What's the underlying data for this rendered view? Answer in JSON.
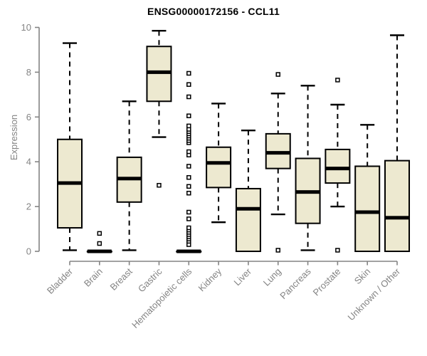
{
  "chart_data": {
    "type": "boxplot",
    "title": "ENSG00000172156 - CCL11",
    "ylabel": "Expression",
    "xlabel": "",
    "ylim": [
      0,
      10
    ],
    "yticks": [
      0,
      2,
      4,
      6,
      8,
      10
    ],
    "grid": false,
    "legend": "none",
    "categories": [
      "Bladder",
      "Brain",
      "Breast",
      "Gastric",
      "Hematopoietic cells",
      "Kidney",
      "Liver",
      "Lung",
      "Pancreas",
      "Prostate",
      "Skin",
      "Unknown / Other"
    ],
    "series": [
      {
        "name": "Bladder",
        "low": 0.05,
        "q1": 1.05,
        "median": 3.05,
        "q3": 5.0,
        "high": 9.3,
        "outliers": []
      },
      {
        "name": "Brain",
        "low": 0,
        "q1": 0,
        "median": 0,
        "q3": 0,
        "high": 0,
        "outliers": [
          0.35,
          0.8
        ]
      },
      {
        "name": "Breast",
        "low": 0.05,
        "q1": 2.2,
        "median": 3.25,
        "q3": 4.2,
        "high": 6.7,
        "outliers": []
      },
      {
        "name": "Gastric",
        "low": 5.1,
        "q1": 6.7,
        "median": 8.0,
        "q3": 9.15,
        "high": 9.85,
        "outliers": [
          2.95
        ]
      },
      {
        "name": "Hematopoietic cells",
        "low": 0,
        "q1": 0,
        "median": 0,
        "q3": 0,
        "high": 0,
        "outliers": [
          0.3,
          0.45,
          0.55,
          0.65,
          0.75,
          0.85,
          0.95,
          1.05,
          1.45,
          1.75,
          2.6,
          2.9,
          3.3,
          3.8,
          4.3,
          4.45,
          4.85,
          4.95,
          5.05,
          5.15,
          5.25,
          5.35,
          5.45,
          5.6,
          6.05,
          6.9,
          7.45,
          7.95
        ]
      },
      {
        "name": "Kidney",
        "low": 1.3,
        "q1": 2.85,
        "median": 3.95,
        "q3": 4.65,
        "high": 6.6,
        "outliers": []
      },
      {
        "name": "Liver",
        "low": 0,
        "q1": 0,
        "median": 1.9,
        "q3": 2.8,
        "high": 5.4,
        "outliers": []
      },
      {
        "name": "Lung",
        "low": 1.65,
        "q1": 3.7,
        "median": 4.4,
        "q3": 5.25,
        "high": 7.05,
        "outliers": [
          7.9,
          0.05
        ]
      },
      {
        "name": "Pancreas",
        "low": 0.05,
        "q1": 1.25,
        "median": 2.65,
        "q3": 4.15,
        "high": 7.4,
        "outliers": []
      },
      {
        "name": "Prostate",
        "low": 2.0,
        "q1": 3.05,
        "median": 3.7,
        "q3": 4.55,
        "high": 6.55,
        "outliers": [
          7.65,
          0.05
        ]
      },
      {
        "name": "Skin",
        "low": 0,
        "q1": 0,
        "median": 1.75,
        "q3": 3.8,
        "high": 5.65,
        "outliers": []
      },
      {
        "name": "Unknown / Other",
        "low": 0,
        "q1": 0,
        "median": 1.5,
        "q3": 4.05,
        "high": 9.65,
        "outliers": []
      }
    ],
    "colors": {
      "box_fill": "#EDE9D0",
      "box_border": "#000000",
      "median": "#000000",
      "whisker": "#000000",
      "outlier_fill": "#ffffff",
      "axis": "#848484",
      "tick_label": "#848484",
      "title": "#000000"
    }
  }
}
